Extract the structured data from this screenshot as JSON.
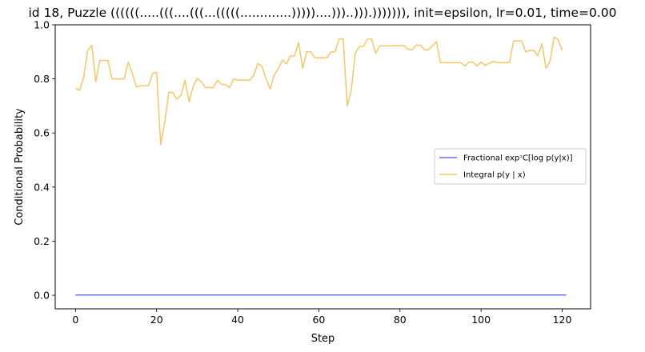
{
  "chart_data": {
    "type": "line",
    "title": "id 18, Puzzle ((((((.....(((....(((...(((((.............)))))....)))..))).))))))), init=epsilon, lr=0.01, time=0.00",
    "xlabel": "Step",
    "ylabel": "Conditional Probability",
    "xlim": [
      -5,
      127
    ],
    "ylim": [
      -0.05,
      1.0
    ],
    "xticks": [
      0,
      20,
      40,
      60,
      80,
      100,
      120
    ],
    "yticks": [
      0.0,
      0.2,
      0.4,
      0.6,
      0.8,
      1.0
    ],
    "xtick_labels": [
      "0",
      "20",
      "40",
      "60",
      "80",
      "100",
      "120"
    ],
    "ytick_labels": [
      "0.0",
      "0.2",
      "0.4",
      "0.6",
      "0.8",
      "1.0"
    ],
    "legend_position": "center-right",
    "series": [
      {
        "name": "Fractional expᵓC[log p(y|x)]",
        "color": "#6b6bef",
        "values": [
          0.001,
          0.001,
          0.001,
          0.001,
          0.001,
          0.001,
          0.001,
          0.001,
          0.001,
          0.001,
          0.001,
          0.001,
          0.001,
          0.001,
          0.001,
          0.001,
          0.001,
          0.001,
          0.001,
          0.001,
          0.001,
          0.001,
          0.001,
          0.001,
          0.001,
          0.001,
          0.001,
          0.001,
          0.001,
          0.001,
          0.001,
          0.001,
          0.001,
          0.001,
          0.001,
          0.001,
          0.001,
          0.001,
          0.001,
          0.001,
          0.001,
          0.001,
          0.001,
          0.001,
          0.001,
          0.001,
          0.001,
          0.001,
          0.001,
          0.001,
          0.001,
          0.001,
          0.001,
          0.001,
          0.001,
          0.001,
          0.001,
          0.001,
          0.001,
          0.001,
          0.001,
          0.001,
          0.001,
          0.001,
          0.001,
          0.001,
          0.001,
          0.001,
          0.001,
          0.001,
          0.001,
          0.001,
          0.001,
          0.001,
          0.001,
          0.001,
          0.001,
          0.001,
          0.001,
          0.001,
          0.001,
          0.001,
          0.001,
          0.001,
          0.001,
          0.001,
          0.001,
          0.001,
          0.001,
          0.001,
          0.001,
          0.001,
          0.001,
          0.001,
          0.001,
          0.001,
          0.001,
          0.001,
          0.001,
          0.001,
          0.001,
          0.001,
          0.001,
          0.001,
          0.001,
          0.001,
          0.001,
          0.001,
          0.001,
          0.001,
          0.001,
          0.001,
          0.001,
          0.001,
          0.001,
          0.001,
          0.001,
          0.001,
          0.001,
          0.001,
          0.001,
          0.001
        ]
      },
      {
        "name": "Integral p(y | x)",
        "color": "#f7c766",
        "values": [
          0.765,
          0.758,
          0.805,
          0.905,
          0.925,
          0.79,
          0.868,
          0.868,
          0.868,
          0.8,
          0.8,
          0.8,
          0.8,
          0.862,
          0.82,
          0.77,
          0.775,
          0.775,
          0.775,
          0.82,
          0.825,
          0.557,
          0.64,
          0.75,
          0.75,
          0.725,
          0.74,
          0.795,
          0.715,
          0.772,
          0.802,
          0.79,
          0.768,
          0.768,
          0.768,
          0.795,
          0.78,
          0.778,
          0.768,
          0.8,
          0.795,
          0.795,
          0.795,
          0.795,
          0.815,
          0.858,
          0.845,
          0.8,
          0.762,
          0.815,
          0.838,
          0.87,
          0.855,
          0.885,
          0.885,
          0.935,
          0.84,
          0.9,
          0.9,
          0.878,
          0.878,
          0.878,
          0.878,
          0.9,
          0.9,
          0.948,
          0.948,
          0.7,
          0.76,
          0.895,
          0.92,
          0.92,
          0.948,
          0.948,
          0.895,
          0.922,
          0.922,
          0.922,
          0.922,
          0.923,
          0.923,
          0.923,
          0.91,
          0.908,
          0.925,
          0.925,
          0.908,
          0.908,
          0.922,
          0.938,
          0.86,
          0.86,
          0.86,
          0.86,
          0.86,
          0.86,
          0.848,
          0.862,
          0.862,
          0.848,
          0.862,
          0.85,
          0.858,
          0.865,
          0.86,
          0.86,
          0.86,
          0.86,
          0.94,
          0.94,
          0.94,
          0.9,
          0.905,
          0.905,
          0.885,
          0.93,
          0.84,
          0.865,
          0.955,
          0.945,
          0.905
        ]
      }
    ]
  }
}
